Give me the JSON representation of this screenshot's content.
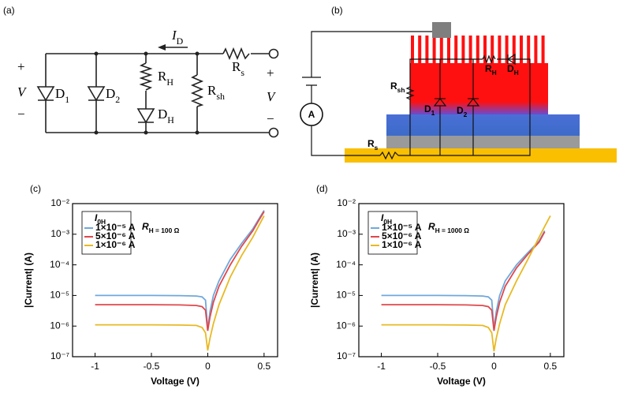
{
  "diagrams": {
    "a": {
      "label": "(a)",
      "labels": [
        "+",
        "V",
        "−",
        "D1",
        "D2",
        "RH",
        "DH",
        "Rsh",
        "ID",
        "Rs",
        "+",
        "V",
        "−"
      ]
    },
    "b": {
      "label": "(b)",
      "labels": [
        "A",
        "Rsh",
        "RH",
        "DH",
        "D1",
        "D2",
        "Rs"
      ]
    }
  },
  "chart_data": [
    {
      "type": "line",
      "label": "(c)",
      "annotation": "RH = 100 Ω",
      "legend_title": "I0H",
      "xlabel": "Voltage (V)",
      "ylabel": "|Current| (A)",
      "log_y": true,
      "xlim": [
        -1.2,
        0.62
      ],
      "xticks": [
        -1.0,
        -0.5,
        0.0,
        0.5
      ],
      "ylim": [
        1e-07,
        0.01
      ],
      "yticks": [
        {
          "value": 1e-07,
          "label": "10⁻⁷"
        },
        {
          "value": 1e-06,
          "label": "10⁻⁶"
        },
        {
          "value": 1e-05,
          "label": "10⁻⁵"
        },
        {
          "value": 0.0001,
          "label": "10⁻⁴"
        },
        {
          "value": 0.001,
          "label": "10⁻³"
        },
        {
          "value": 0.01,
          "label": "10⁻²"
        }
      ],
      "x": [
        -1,
        -0.75,
        -0.5,
        -0.25,
        -0.1,
        -0.05,
        -0.02,
        0,
        0.02,
        0.05,
        0.1,
        0.2,
        0.3,
        0.4,
        0.45,
        0.5
      ],
      "series": [
        {
          "name": "1×10⁻⁵ A",
          "color": "#6fa8dc",
          "values": [
            1e-05,
            1e-05,
            1e-05,
            9.9e-06,
            9.6e-06,
            9e-06,
            7e-06,
            8e-07,
            3e-06,
            1e-05,
            3e-05,
            0.00015,
            0.0005,
            0.0015,
            0.003,
            0.006
          ]
        },
        {
          "name": "5×10⁻⁶ A",
          "color": "#e0474c",
          "values": [
            5e-06,
            5e-06,
            5e-06,
            4.9e-06,
            4.7e-06,
            4.3e-06,
            3.3e-06,
            7e-07,
            2e-06,
            6e-06,
            2e-05,
            0.0001,
            0.0004,
            0.0013,
            0.0027,
            0.0055
          ]
        },
        {
          "name": "1×10⁻⁶ A",
          "color": "#e8b923",
          "values": [
            1.1e-06,
            1.1e-06,
            1.1e-06,
            1.08e-06,
            1.05e-06,
            9e-07,
            6e-07,
            1.6e-07,
            4e-07,
            1.2e-06,
            5e-06,
            4e-05,
            0.0002,
            0.0008,
            0.0018,
            0.004
          ]
        }
      ]
    },
    {
      "type": "line",
      "label": "(d)",
      "annotation": "RH = 1000 Ω",
      "legend_title": "I0H",
      "xlabel": "Voltage (V)",
      "ylabel": "|Current| (A)",
      "log_y": true,
      "xlim": [
        -1.2,
        0.62
      ],
      "xticks": [
        -1.0,
        -0.5,
        0.0,
        0.5
      ],
      "ylim": [
        1e-07,
        0.01
      ],
      "yticks": [
        {
          "value": 1e-07,
          "label": "10⁻⁷"
        },
        {
          "value": 1e-06,
          "label": "10⁻⁶"
        },
        {
          "value": 1e-05,
          "label": "10⁻⁵"
        },
        {
          "value": 0.0001,
          "label": "10⁻⁴"
        },
        {
          "value": 0.001,
          "label": "10⁻³"
        },
        {
          "value": 0.01,
          "label": "10⁻²"
        }
      ],
      "x": [
        -1,
        -0.75,
        -0.5,
        -0.25,
        -0.1,
        -0.05,
        -0.02,
        0,
        0.02,
        0.05,
        0.1,
        0.2,
        0.3,
        0.4,
        0.45,
        0.5
      ],
      "series": [
        {
          "name": "1×10⁻⁵ A",
          "color": "#6fa8dc",
          "values": [
            1e-05,
            1e-05,
            1e-05,
            9.9e-06,
            9.6e-06,
            9e-06,
            7e-06,
            8e-07,
            3e-06,
            1e-05,
            3e-05,
            0.0001,
            0.00025,
            0.0006,
            0.0013,
            null
          ]
        },
        {
          "name": "5×10⁻⁶ A",
          "color": "#e0474c",
          "values": [
            5e-06,
            5e-06,
            5e-06,
            4.9e-06,
            4.7e-06,
            4.3e-06,
            3.3e-06,
            7e-07,
            2e-06,
            6e-06,
            2e-05,
            8e-05,
            0.00022,
            0.00055,
            0.0012,
            null
          ]
        },
        {
          "name": "1×10⁻⁶ A",
          "color": "#e8b923",
          "values": [
            1.1e-06,
            1.1e-06,
            1.1e-06,
            1.08e-06,
            1.05e-06,
            9e-07,
            6e-07,
            1.5e-07,
            4e-07,
            1.2e-06,
            5e-06,
            3e-05,
            0.00015,
            0.0008,
            0.0018,
            0.004
          ]
        }
      ]
    }
  ]
}
